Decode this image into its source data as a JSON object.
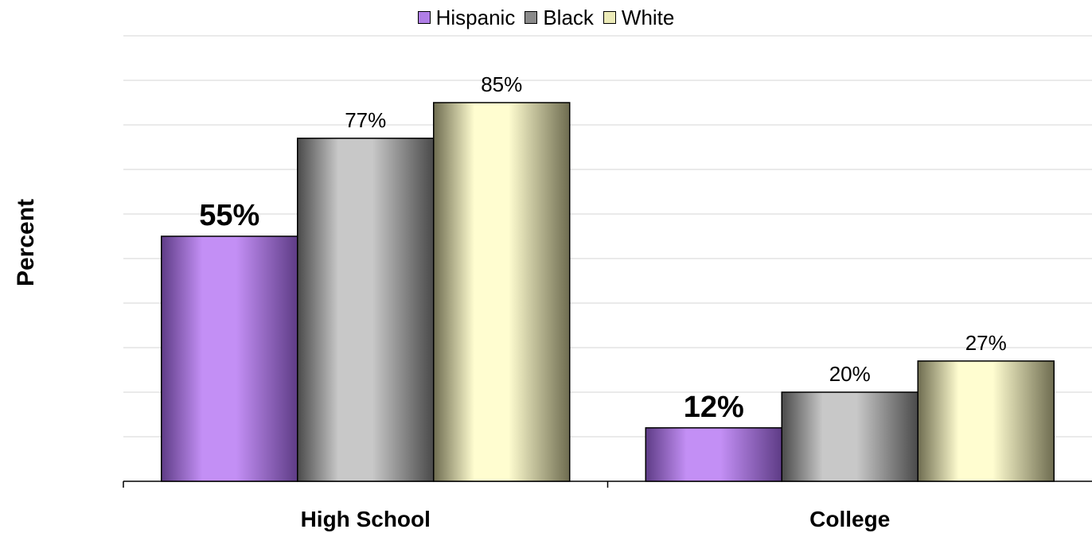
{
  "chart_data": {
    "type": "bar",
    "title": "",
    "xlabel": "",
    "ylabel": "Percent",
    "ylim": [
      0,
      100
    ],
    "grid": true,
    "legend_position": "top-center",
    "categories": [
      "High School",
      "College"
    ],
    "series": [
      {
        "name": "Hispanic",
        "values": [
          55,
          12
        ],
        "labels": [
          "55%",
          "12%"
        ],
        "label_bold": true,
        "color": "#c38ff5",
        "shade": "#5e3c86"
      },
      {
        "name": "Black",
        "values": [
          77,
          20
        ],
        "labels": [
          "77%",
          "20%"
        ],
        "label_bold": false,
        "color": "#c8c8c8",
        "shade": "#4a4a4a"
      },
      {
        "name": "White",
        "values": [
          85,
          27
        ],
        "labels": [
          "85%",
          "27%"
        ],
        "label_bold": false,
        "color": "#fffdd0",
        "shade": "#6e6c50"
      }
    ]
  }
}
